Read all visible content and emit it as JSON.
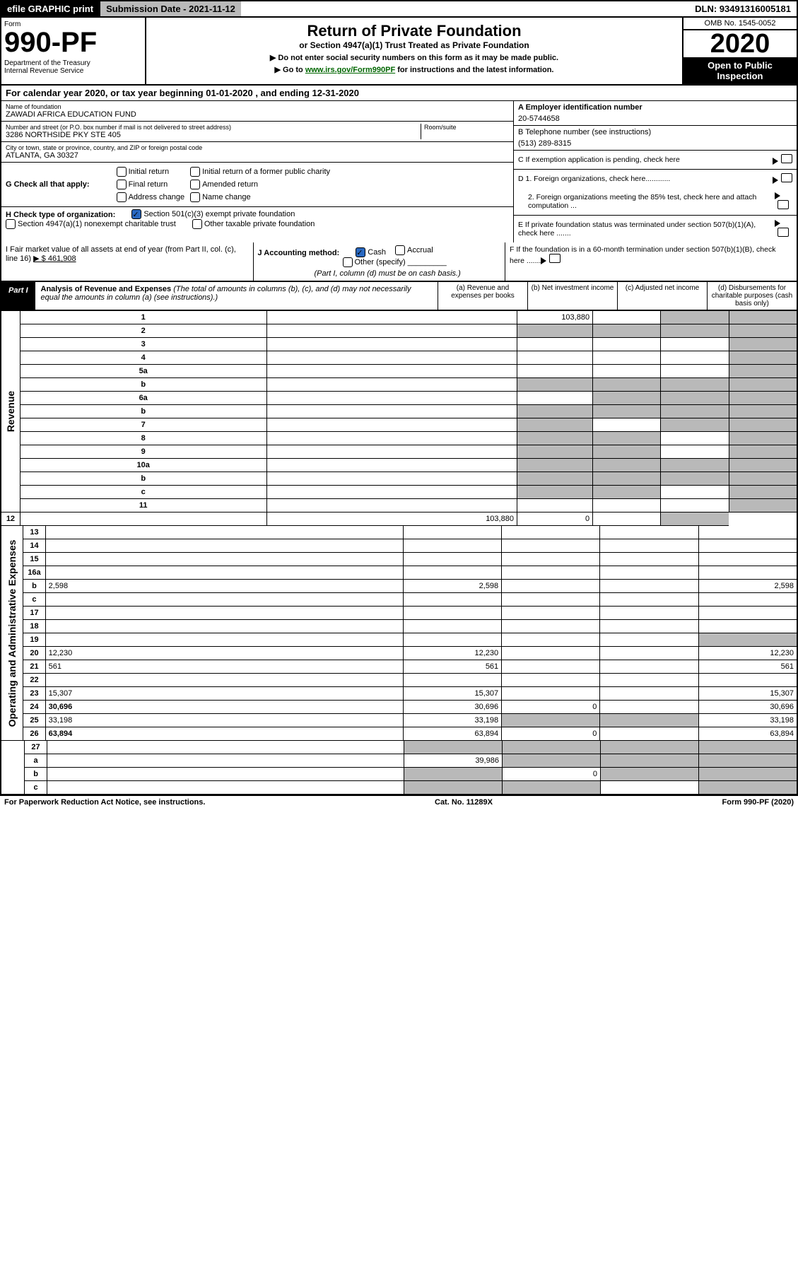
{
  "top": {
    "efile": "efile GRAPHIC print",
    "submission": "Submission Date - 2021-11-12",
    "dln": "DLN: 93491316005181"
  },
  "header": {
    "form": "Form",
    "num": "990-PF",
    "dept": "Department of the Treasury\nInternal Revenue Service",
    "title": "Return of Private Foundation",
    "sub": "or Section 4947(a)(1) Trust Treated as Private Foundation",
    "note1": "▶ Do not enter social security numbers on this form as it may be made public.",
    "note2_pre": "▶ Go to ",
    "note2_link": "www.irs.gov/Form990PF",
    "note2_post": " for instructions and the latest information.",
    "omb": "OMB No. 1545-0052",
    "year": "2020",
    "open": "Open to Public Inspection"
  },
  "cal": "For calendar year 2020, or tax year beginning 01-01-2020                          , and ending 12-31-2020",
  "info": {
    "name_lbl": "Name of foundation",
    "name": "ZAWADI AFRICA EDUCATION FUND",
    "addr_lbl": "Number and street (or P.O. box number if mail is not delivered to street address)",
    "addr": "3286 NORTHSIDE PKY STE 405",
    "room_lbl": "Room/suite",
    "city_lbl": "City or town, state or province, country, and ZIP or foreign postal code",
    "city": "ATLANTA, GA  30327",
    "ein_lbl": "A Employer identification number",
    "ein": "20-5744658",
    "tel_lbl": "B Telephone number (see instructions)",
    "tel": "(513) 289-8315",
    "c": "C If exemption application is pending, check here",
    "d1": "D 1. Foreign organizations, check here............",
    "d2": "2. Foreign organizations meeting the 85% test, check here and attach computation ...",
    "e": "E   If private foundation status was terminated under section 507(b)(1)(A), check here .......",
    "f": "F   If the foundation is in a 60-month termination under section 507(b)(1)(B), check here ......."
  },
  "g": {
    "label": "G Check all that apply:",
    "initial": "Initial return",
    "final": "Final return",
    "addr_change": "Address change",
    "initial_former": "Initial return of a former public charity",
    "amended": "Amended return",
    "name_change": "Name change"
  },
  "h": {
    "label": "H Check type of organization:",
    "opt1": "Section 501(c)(3) exempt private foundation",
    "opt2": "Section 4947(a)(1) nonexempt charitable trust",
    "opt3": "Other taxable private foundation"
  },
  "i": {
    "label": "I Fair market value of all assets at end of year (from Part II, col. (c), line 16)",
    "val": "▶ $  461,908"
  },
  "j": {
    "label": "J Accounting method:",
    "cash": "Cash",
    "accrual": "Accrual",
    "other": "Other (specify)",
    "note": "(Part I, column (d) must be on cash basis.)"
  },
  "part1": {
    "label": "Part I",
    "title": "Analysis of Revenue and Expenses",
    "desc": "(The total of amounts in columns (b), (c), and (d) may not necessarily equal the amounts in column (a) (see instructions).)",
    "col_a": "(a)   Revenue and expenses per books",
    "col_b": "(b)   Net investment income",
    "col_c": "(c)   Adjusted net income",
    "col_d": "(d)   Disbursements for charitable purposes (cash basis only)"
  },
  "sides": {
    "rev": "Revenue",
    "exp": "Operating and Administrative Expenses"
  },
  "rows": [
    {
      "n": "1",
      "d": "",
      "a": "103,880",
      "b": "",
      "c": "",
      "cs": true,
      "ds": true
    },
    {
      "n": "2",
      "d": "",
      "a": "",
      "b": "",
      "c": "",
      "as": true,
      "bs": true,
      "cs": true,
      "ds": true
    },
    {
      "n": "3",
      "d": "",
      "a": "",
      "b": "",
      "c": "",
      "ds": true
    },
    {
      "n": "4",
      "d": "",
      "a": "",
      "b": "",
      "c": "",
      "ds": true
    },
    {
      "n": "5a",
      "d": "",
      "a": "",
      "b": "",
      "c": "",
      "ds": true
    },
    {
      "n": "b",
      "d": "",
      "a": "",
      "b": "",
      "c": "",
      "as": true,
      "bs": true,
      "cs": true,
      "ds": true
    },
    {
      "n": "6a",
      "d": "",
      "a": "",
      "b": "",
      "c": "",
      "bs": true,
      "cs": true,
      "ds": true
    },
    {
      "n": "b",
      "d": "",
      "a": "",
      "b": "",
      "c": "",
      "as": true,
      "bs": true,
      "cs": true,
      "ds": true
    },
    {
      "n": "7",
      "d": "",
      "a": "",
      "b": "",
      "c": "",
      "as": true,
      "cs": true,
      "ds": true
    },
    {
      "n": "8",
      "d": "",
      "a": "",
      "b": "",
      "c": "",
      "as": true,
      "bs": true,
      "ds": true
    },
    {
      "n": "9",
      "d": "",
      "a": "",
      "b": "",
      "c": "",
      "as": true,
      "bs": true,
      "ds": true
    },
    {
      "n": "10a",
      "d": "",
      "a": "",
      "b": "",
      "c": "",
      "as": true,
      "bs": true,
      "cs": true,
      "ds": true
    },
    {
      "n": "b",
      "d": "",
      "a": "",
      "b": "",
      "c": "",
      "as": true,
      "bs": true,
      "cs": true,
      "ds": true
    },
    {
      "n": "c",
      "d": "",
      "a": "",
      "b": "",
      "c": "",
      "as": true,
      "bs": true,
      "ds": true
    },
    {
      "n": "11",
      "d": "",
      "a": "",
      "b": "",
      "c": "",
      "ds": true
    },
    {
      "n": "12",
      "d": "",
      "a": "103,880",
      "b": "0",
      "c": "",
      "ds": true,
      "bold": true
    }
  ],
  "exp_rows": [
    {
      "n": "13",
      "d": "",
      "a": "",
      "b": "",
      "c": ""
    },
    {
      "n": "14",
      "d": "",
      "a": "",
      "b": "",
      "c": ""
    },
    {
      "n": "15",
      "d": "",
      "a": "",
      "b": "",
      "c": ""
    },
    {
      "n": "16a",
      "d": "",
      "a": "",
      "b": "",
      "c": ""
    },
    {
      "n": "b",
      "d": "2,598",
      "a": "2,598",
      "b": "",
      "c": ""
    },
    {
      "n": "c",
      "d": "",
      "a": "",
      "b": "",
      "c": ""
    },
    {
      "n": "17",
      "d": "",
      "a": "",
      "b": "",
      "c": ""
    },
    {
      "n": "18",
      "d": "",
      "a": "",
      "b": "",
      "c": ""
    },
    {
      "n": "19",
      "d": "",
      "a": "",
      "b": "",
      "c": "",
      "ds": true
    },
    {
      "n": "20",
      "d": "12,230",
      "a": "12,230",
      "b": "",
      "c": ""
    },
    {
      "n": "21",
      "d": "561",
      "a": "561",
      "b": "",
      "c": ""
    },
    {
      "n": "22",
      "d": "",
      "a": "",
      "b": "",
      "c": ""
    },
    {
      "n": "23",
      "d": "15,307",
      "a": "15,307",
      "b": "",
      "c": ""
    },
    {
      "n": "24",
      "d": "30,696",
      "a": "30,696",
      "b": "0",
      "c": "",
      "bold": true
    },
    {
      "n": "25",
      "d": "33,198",
      "a": "33,198",
      "b": "",
      "c": "",
      "bs": true,
      "cs": true
    },
    {
      "n": "26",
      "d": "63,894",
      "a": "63,894",
      "b": "0",
      "c": "",
      "bold": true
    }
  ],
  "bottom_rows": [
    {
      "n": "27",
      "d": "",
      "a": "",
      "b": "",
      "c": "",
      "as": true,
      "bs": true,
      "cs": true,
      "ds": true
    },
    {
      "n": "a",
      "d": "",
      "a": "39,986",
      "b": "",
      "c": "",
      "bs": true,
      "cs": true,
      "ds": true,
      "bold": true
    },
    {
      "n": "b",
      "d": "",
      "a": "",
      "b": "0",
      "c": "",
      "as": true,
      "cs": true,
      "ds": true,
      "bold": true
    },
    {
      "n": "c",
      "d": "",
      "a": "",
      "b": "",
      "c": "",
      "as": true,
      "bs": true,
      "ds": true,
      "bold": true
    }
  ],
  "footer": {
    "left": "For Paperwork Reduction Act Notice, see instructions.",
    "mid": "Cat. No. 11289X",
    "right": "Form 990-PF (2020)"
  }
}
